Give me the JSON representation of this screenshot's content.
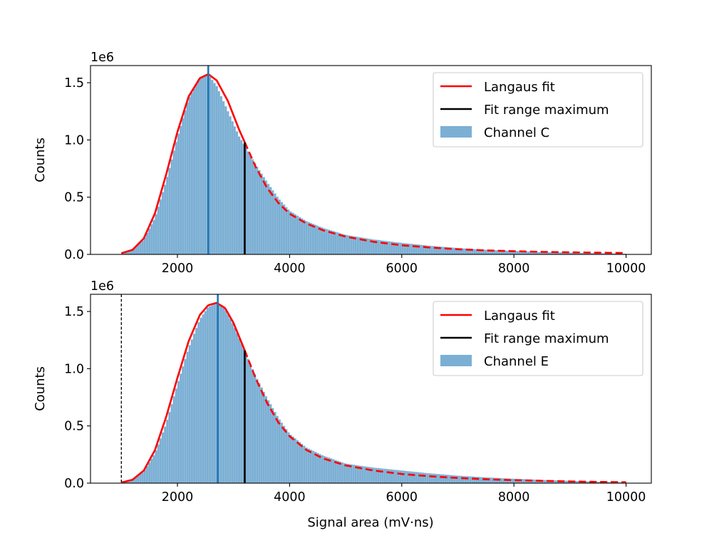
{
  "figure": {
    "xlabel": "Signal area (mV·ns)"
  },
  "chart_data": [
    {
      "type": "histogram",
      "title": "",
      "xlabel": "",
      "ylabel": "Counts",
      "y_offset_label": "1e6",
      "xlim": [
        450,
        10450
      ],
      "ylim": [
        0,
        1.65
      ],
      "xticks": [
        2000,
        4000,
        6000,
        8000,
        10000
      ],
      "xtick_labels": [
        "2000",
        "4000",
        "6000",
        "8000",
        "10000"
      ],
      "yticks": [
        0.0,
        0.5,
        1.0,
        1.5
      ],
      "ytick_labels": [
        "0.0",
        "0.5",
        "1.0",
        "1.5"
      ],
      "histogram": {
        "name": "Channel C",
        "bin_width": 40,
        "points": [
          [
            1000,
            0.0
          ],
          [
            1200,
            0.04
          ],
          [
            1400,
            0.13
          ],
          [
            1600,
            0.32
          ],
          [
            1800,
            0.64
          ],
          [
            2000,
            1.02
          ],
          [
            2200,
            1.36
          ],
          [
            2400,
            1.54
          ],
          [
            2550,
            1.57
          ],
          [
            2700,
            1.47
          ],
          [
            2900,
            1.25
          ],
          [
            3100,
            1.03
          ],
          [
            3200,
            0.95
          ],
          [
            3400,
            0.78
          ],
          [
            3600,
            0.63
          ],
          [
            3800,
            0.49
          ],
          [
            4000,
            0.38
          ],
          [
            4300,
            0.29
          ],
          [
            4600,
            0.23
          ],
          [
            5000,
            0.17
          ],
          [
            5500,
            0.13
          ],
          [
            6000,
            0.1
          ],
          [
            6500,
            0.075
          ],
          [
            7000,
            0.055
          ],
          [
            7500,
            0.04
          ],
          [
            8000,
            0.03
          ],
          [
            8500,
            0.02
          ],
          [
            9000,
            0.015
          ],
          [
            9500,
            0.01
          ],
          [
            10000,
            0.005
          ]
        ]
      },
      "fit": {
        "name": "Langaus fit",
        "color": "#ff0000",
        "fit_range_max": 3200,
        "points": [
          [
            1000,
            0.01
          ],
          [
            1200,
            0.04
          ],
          [
            1400,
            0.14
          ],
          [
            1600,
            0.36
          ],
          [
            1800,
            0.7
          ],
          [
            2000,
            1.07
          ],
          [
            2200,
            1.38
          ],
          [
            2400,
            1.54
          ],
          [
            2550,
            1.575
          ],
          [
            2700,
            1.52
          ],
          [
            2900,
            1.34
          ],
          [
            3100,
            1.09
          ],
          [
            3200,
            0.98
          ],
          [
            3400,
            0.76
          ],
          [
            3600,
            0.58
          ],
          [
            3800,
            0.45
          ],
          [
            4000,
            0.355
          ],
          [
            4300,
            0.27
          ],
          [
            4600,
            0.21
          ],
          [
            5000,
            0.155
          ],
          [
            5500,
            0.11
          ],
          [
            6000,
            0.08
          ],
          [
            6500,
            0.06
          ],
          [
            7000,
            0.045
          ],
          [
            7500,
            0.035
          ],
          [
            8000,
            0.028
          ],
          [
            8500,
            0.022
          ],
          [
            9000,
            0.018
          ],
          [
            9500,
            0.015
          ],
          [
            10000,
            0.012
          ]
        ]
      },
      "fit_range_marker": {
        "name": "Fit range maximum",
        "x": 3200,
        "color": "#000000"
      },
      "peak_marker": {
        "x": 2550,
        "color": "#1f77b4"
      },
      "threshold_marker": null,
      "legend": {
        "position": "top-right",
        "entries": [
          {
            "label": "Langaus fit",
            "kind": "line",
            "color": "#ff0000"
          },
          {
            "label": "Fit range maximum",
            "kind": "line",
            "color": "#000000"
          },
          {
            "label": "Channel C",
            "kind": "patch",
            "color": "#7bafd4"
          }
        ]
      }
    },
    {
      "type": "histogram",
      "title": "",
      "xlabel": "Signal area (mV·ns)",
      "ylabel": "Counts",
      "y_offset_label": "1e6",
      "xlim": [
        450,
        10450
      ],
      "ylim": [
        0,
        1.65
      ],
      "xticks": [
        2000,
        4000,
        6000,
        8000,
        10000
      ],
      "xtick_labels": [
        "2000",
        "4000",
        "6000",
        "8000",
        "10000"
      ],
      "yticks": [
        0.0,
        0.5,
        1.0,
        1.5
      ],
      "ytick_labels": [
        "0.0",
        "0.5",
        "1.0",
        "1.5"
      ],
      "histogram": {
        "name": "Channel E",
        "bin_width": 40,
        "points": [
          [
            1000,
            0.0
          ],
          [
            1200,
            0.03
          ],
          [
            1400,
            0.1
          ],
          [
            1600,
            0.26
          ],
          [
            1800,
            0.52
          ],
          [
            2000,
            0.86
          ],
          [
            2200,
            1.18
          ],
          [
            2400,
            1.43
          ],
          [
            2550,
            1.54
          ],
          [
            2700,
            1.57
          ],
          [
            2850,
            1.52
          ],
          [
            3000,
            1.38
          ],
          [
            3200,
            1.15
          ],
          [
            3400,
            0.93
          ],
          [
            3600,
            0.74
          ],
          [
            3800,
            0.57
          ],
          [
            4000,
            0.43
          ],
          [
            4300,
            0.31
          ],
          [
            4600,
            0.24
          ],
          [
            5000,
            0.17
          ],
          [
            5500,
            0.135
          ],
          [
            6000,
            0.11
          ],
          [
            6500,
            0.085
          ],
          [
            7000,
            0.065
          ],
          [
            7500,
            0.05
          ],
          [
            8000,
            0.038
          ],
          [
            8500,
            0.028
          ],
          [
            9000,
            0.02
          ],
          [
            9500,
            0.012
          ],
          [
            10000,
            0.005
          ]
        ]
      },
      "fit": {
        "name": "Langaus fit",
        "color": "#ff0000",
        "fit_range_max": 3200,
        "points": [
          [
            1000,
            0.005
          ],
          [
            1200,
            0.03
          ],
          [
            1400,
            0.11
          ],
          [
            1600,
            0.29
          ],
          [
            1800,
            0.58
          ],
          [
            2000,
            0.92
          ],
          [
            2200,
            1.24
          ],
          [
            2400,
            1.47
          ],
          [
            2550,
            1.555
          ],
          [
            2700,
            1.575
          ],
          [
            2850,
            1.53
          ],
          [
            3000,
            1.4
          ],
          [
            3200,
            1.16
          ],
          [
            3400,
            0.91
          ],
          [
            3600,
            0.7
          ],
          [
            3800,
            0.53
          ],
          [
            4000,
            0.41
          ],
          [
            4300,
            0.29
          ],
          [
            4600,
            0.215
          ],
          [
            5000,
            0.155
          ],
          [
            5500,
            0.11
          ],
          [
            6000,
            0.08
          ],
          [
            6500,
            0.06
          ],
          [
            7000,
            0.045
          ],
          [
            7500,
            0.034
          ],
          [
            8000,
            0.026
          ],
          [
            8500,
            0.02
          ],
          [
            9000,
            0.015
          ],
          [
            9500,
            0.011
          ],
          [
            10000,
            0.008
          ]
        ]
      },
      "fit_range_marker": {
        "name": "Fit range maximum",
        "x": 3200,
        "color": "#000000"
      },
      "peak_marker": {
        "x": 2720,
        "color": "#1f77b4"
      },
      "threshold_marker": {
        "x": 1000,
        "color": "#000000",
        "style": "dashed"
      },
      "legend": {
        "position": "top-right",
        "entries": [
          {
            "label": "Langaus fit",
            "kind": "line",
            "color": "#ff0000"
          },
          {
            "label": "Fit range maximum",
            "kind": "line",
            "color": "#000000"
          },
          {
            "label": "Channel E",
            "kind": "patch",
            "color": "#7bafd4"
          }
        ]
      }
    }
  ]
}
